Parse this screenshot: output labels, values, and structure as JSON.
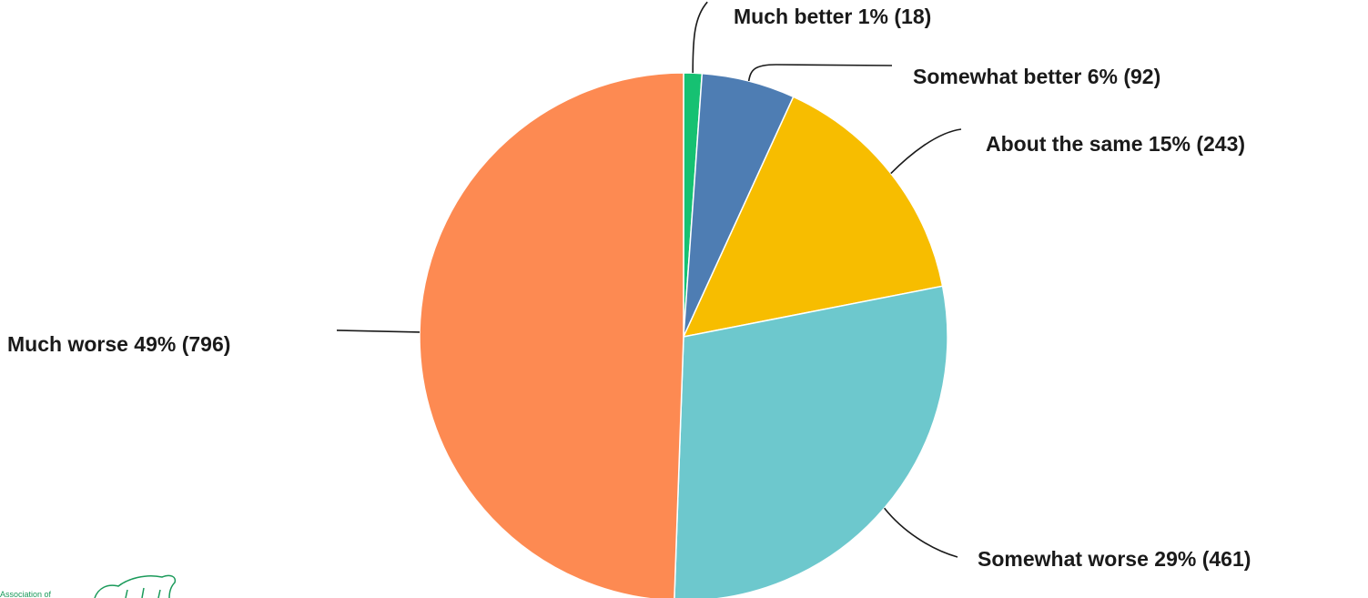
{
  "chart_data": {
    "type": "pie",
    "slices": [
      {
        "category": "Much better",
        "percent": 1,
        "count": 18,
        "label": "Much better 1% (18)",
        "color": "#16c172"
      },
      {
        "category": "Somewhat better",
        "percent": 6,
        "count": 92,
        "label": "Somewhat better 6% (92)",
        "color": "#4e7db3"
      },
      {
        "category": "About the same",
        "percent": 15,
        "count": 243,
        "label": "About the same 15% (243)",
        "color": "#f7bd00"
      },
      {
        "category": "Somewhat worse",
        "percent": 29,
        "count": 461,
        "label": "Somewhat worse 29% (461)",
        "color": "#6dc8cd"
      },
      {
        "category": "Much worse",
        "percent": 49,
        "count": 796,
        "label": "Much worse 49% (796)",
        "color": "#fd8a52"
      }
    ],
    "legend": "none",
    "label_style": "outside-with-leader-lines"
  },
  "watermark": {
    "text": "Association of",
    "color": "#1a9a5a"
  }
}
